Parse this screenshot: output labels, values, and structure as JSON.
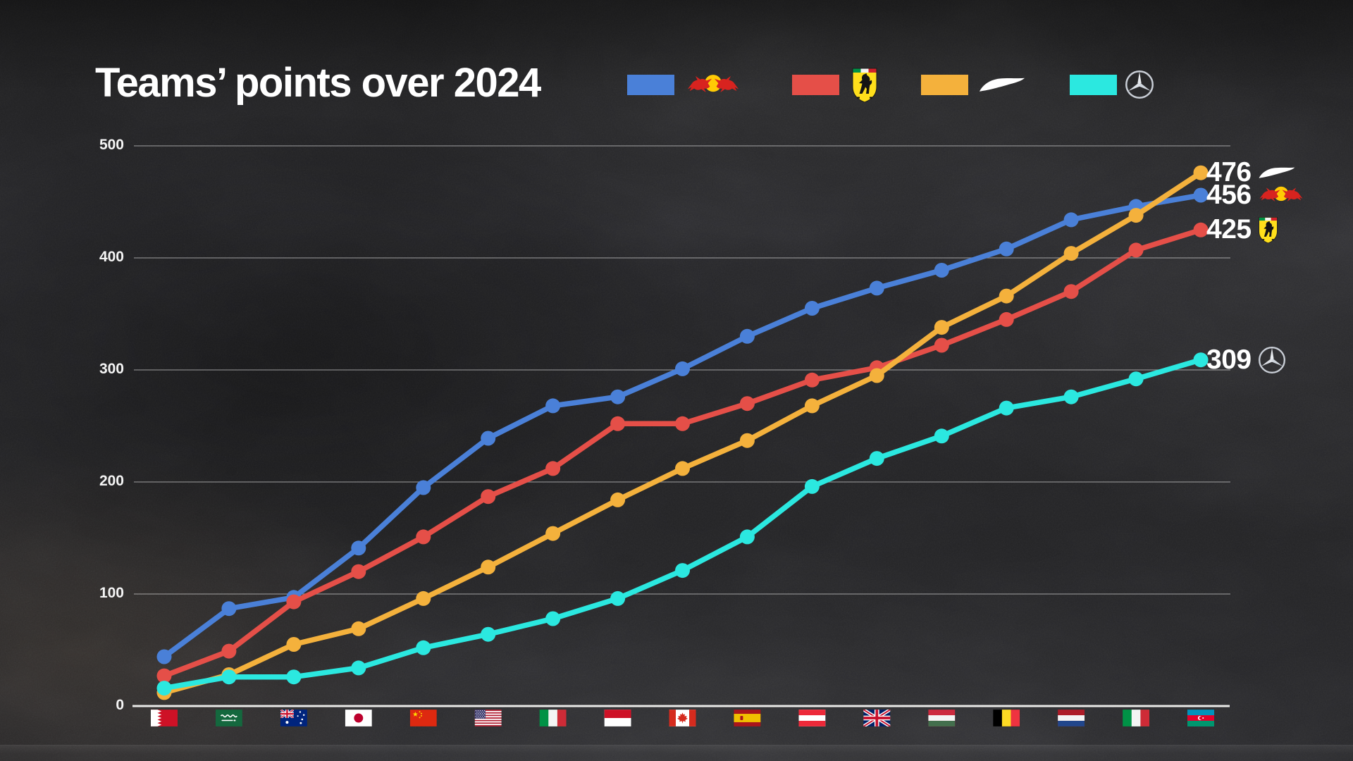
{
  "title": "Teams’ points over 2024",
  "legend": {
    "items": [
      {
        "team": "Red Bull",
        "color": "#4a80d8",
        "logo": "red-bull"
      },
      {
        "team": "Ferrari",
        "color": "#e54f48",
        "logo": "ferrari"
      },
      {
        "team": "McLaren",
        "color": "#f4b13c",
        "logo": "mclaren"
      },
      {
        "team": "Mercedes",
        "color": "#2be8e0",
        "logo": "mercedes"
      }
    ]
  },
  "chart_data": {
    "type": "line",
    "title": "Teams’ points over 2024",
    "xlabel": "",
    "ylabel": "",
    "legend_position": "top",
    "x_axis": {
      "tick_style": "country-flags",
      "races": [
        {
          "name": "Bahrain",
          "flag": "bahrain"
        },
        {
          "name": "Saudi Arabia",
          "flag": "saudi-arabia"
        },
        {
          "name": "Australia",
          "flag": "australia"
        },
        {
          "name": "Japan",
          "flag": "japan"
        },
        {
          "name": "China",
          "flag": "china"
        },
        {
          "name": "Miami",
          "flag": "usa"
        },
        {
          "name": "Emilia-Romagna",
          "flag": "italy"
        },
        {
          "name": "Monaco",
          "flag": "monaco"
        },
        {
          "name": "Canada",
          "flag": "canada"
        },
        {
          "name": "Spain",
          "flag": "spain"
        },
        {
          "name": "Austria",
          "flag": "austria"
        },
        {
          "name": "Great Britain",
          "flag": "united-kingdom"
        },
        {
          "name": "Hungary",
          "flag": "hungary"
        },
        {
          "name": "Belgium",
          "flag": "belgium"
        },
        {
          "name": "Netherlands",
          "flag": "netherlands"
        },
        {
          "name": "Italy",
          "flag": "italy"
        },
        {
          "name": "Azerbaijan",
          "flag": "azerbaijan"
        }
      ]
    },
    "y_axis": {
      "ticks": [
        0,
        100,
        200,
        300,
        400,
        500
      ],
      "range": [
        0,
        500
      ],
      "gridlines": true
    },
    "series": [
      {
        "name": "Red Bull",
        "color": "#4a80d8",
        "values": [
          44,
          87,
          97,
          141,
          195,
          239,
          268,
          276,
          301,
          330,
          355,
          373,
          389,
          408,
          434,
          446,
          456
        ]
      },
      {
        "name": "Ferrari",
        "color": "#e54f48",
        "values": [
          27,
          49,
          93,
          120,
          151,
          187,
          212,
          252,
          252,
          270,
          291,
          302,
          322,
          345,
          370,
          407,
          425
        ]
      },
      {
        "name": "McLaren",
        "color": "#f4b13c",
        "values": [
          12,
          28,
          55,
          69,
          96,
          124,
          154,
          184,
          212,
          237,
          268,
          295,
          338,
          366,
          404,
          438,
          476
        ]
      },
      {
        "name": "Mercedes",
        "color": "#2be8e0",
        "values": [
          16,
          26,
          26,
          34,
          52,
          64,
          78,
          96,
          121,
          151,
          196,
          221,
          241,
          266,
          276,
          292,
          309
        ]
      }
    ],
    "end_labels": [
      {
        "team": "McLaren",
        "value": 476
      },
      {
        "team": "Red Bull",
        "value": 456
      },
      {
        "team": "Ferrari",
        "value": 425
      },
      {
        "team": "Mercedes",
        "value": 309
      }
    ]
  }
}
